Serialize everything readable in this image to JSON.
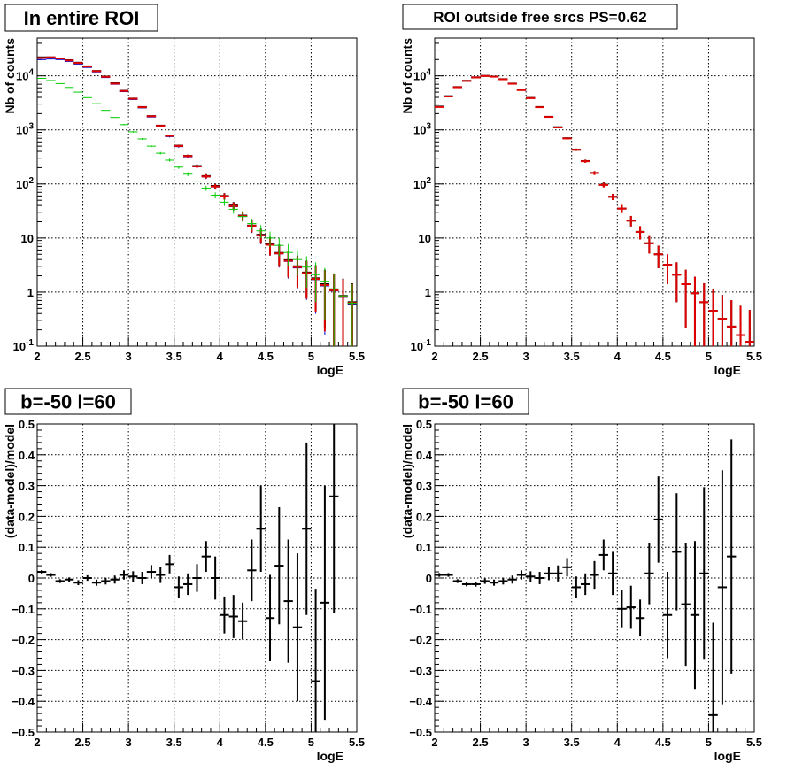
{
  "chart_data": [
    {
      "type": "scatter",
      "title": "In entire ROI",
      "xlabel": "logE",
      "ylabel": "Nb of counts",
      "xlim": [
        2,
        5.5
      ],
      "ylim": [
        0.1,
        50000
      ],
      "yscale": "log",
      "grid": true,
      "x_ticks": [
        "2",
        "2.5",
        "3",
        "3.5",
        "4",
        "4.5",
        "5",
        "5.5"
      ],
      "y_ticks": [
        "10^-1",
        "1",
        "10",
        "10^2",
        "10^3",
        "10^4"
      ],
      "series": [
        {
          "color": "#000000",
          "x": [
            2.05,
            2.15,
            2.25,
            2.35,
            2.45,
            2.55,
            2.65,
            2.75,
            2.85,
            2.95,
            3.05,
            3.15,
            3.25,
            3.35,
            3.45,
            3.55,
            3.65,
            3.75,
            3.85,
            3.95,
            4.05,
            4.15,
            4.25,
            4.35,
            4.45,
            4.55,
            4.65,
            4.75,
            4.85,
            4.95,
            5.05,
            5.15,
            5.25,
            5.35,
            5.45
          ],
          "y": [
            22000,
            22000,
            21000,
            19500,
            17500,
            15000,
            12300,
            9700,
            7300,
            5300,
            3800,
            2650,
            1800,
            1200,
            780,
            510,
            330,
            215,
            140,
            92,
            60,
            40,
            26,
            17,
            11.5,
            7.7,
            5.3,
            3.9,
            3.0,
            2.3,
            1.8,
            1.4,
            1.1,
            0.85,
            0.65
          ]
        },
        {
          "color": "#0000cc",
          "x": [
            2.05,
            2.15,
            2.25,
            2.35,
            2.45,
            2.55,
            2.65,
            2.75,
            2.85,
            2.95,
            3.05,
            3.15,
            3.25,
            3.35,
            3.45,
            3.55,
            3.65,
            3.75,
            3.85,
            3.95,
            4.05,
            4.15,
            4.25,
            4.35,
            4.45,
            4.55,
            4.65,
            4.75,
            4.85,
            4.95,
            5.05,
            5.15,
            5.25,
            5.35,
            5.45
          ],
          "y": [
            20000,
            20500,
            20000,
            18500,
            16500,
            14300,
            11800,
            9300,
            7000,
            5100,
            3650,
            2550,
            1730,
            1150,
            750,
            490,
            318,
            207,
            135,
            88,
            58,
            38,
            25,
            16.5,
            11,
            7.4,
            5.1,
            3.7,
            2.8,
            2.2,
            1.7,
            1.3,
            1.05,
            0.8,
            0.6
          ]
        },
        {
          "color": "#e00000",
          "x": [
            2.05,
            2.15,
            2.25,
            2.35,
            2.45,
            2.55,
            2.65,
            2.75,
            2.85,
            2.95,
            3.05,
            3.15,
            3.25,
            3.35,
            3.45,
            3.55,
            3.65,
            3.75,
            3.85,
            3.95,
            4.05,
            4.15,
            4.25,
            4.35,
            4.45,
            4.55,
            4.65,
            4.75,
            4.85,
            4.95,
            5.05,
            5.15,
            5.25,
            5.35,
            5.45
          ],
          "y": [
            21500,
            22000,
            21000,
            19300,
            17300,
            14900,
            12200,
            9600,
            7200,
            5250,
            3770,
            2630,
            1790,
            1190,
            775,
            505,
            328,
            212,
            138,
            90,
            59,
            39,
            25.5,
            16.8,
            11.2,
            7.5,
            5.2,
            3.8,
            2.9,
            2.25,
            1.75,
            1.35,
            1.08,
            0.82,
            0.63
          ]
        },
        {
          "color": "#00cc00",
          "x": [
            2.05,
            2.15,
            2.25,
            2.35,
            2.45,
            2.55,
            2.65,
            2.75,
            2.85,
            2.95,
            3.05,
            3.15,
            3.25,
            3.35,
            3.45,
            3.55,
            3.65,
            3.75,
            3.85,
            3.95,
            4.05,
            4.15,
            4.25,
            4.35,
            4.45,
            4.55,
            4.65,
            4.75,
            4.85,
            4.95,
            5.05,
            5.15,
            5.25,
            5.35,
            5.45
          ],
          "y": [
            9000,
            8200,
            7200,
            6100,
            5000,
            3950,
            3050,
            2300,
            1700,
            1250,
            920,
            680,
            500,
            370,
            275,
            205,
            152,
            113,
            84,
            62,
            46,
            34,
            25,
            18.5,
            13.6,
            10,
            7.3,
            5.4,
            4.0,
            2.9,
            2.1,
            1.55,
            1.15,
            0.85,
            0.62
          ]
        }
      ]
    },
    {
      "type": "scatter",
      "title": "ROI outside free srcs PS=0.62",
      "xlabel": "logE",
      "ylabel": "Nb of counts",
      "xlim": [
        2,
        5.5
      ],
      "ylim": [
        0.1,
        50000
      ],
      "yscale": "log",
      "grid": true,
      "x_ticks": [
        "2",
        "2.5",
        "3",
        "3.5",
        "4",
        "4.5",
        "5",
        "5.5"
      ],
      "y_ticks": [
        "10^-1",
        "1",
        "10",
        "10^2",
        "10^3",
        "10^4"
      ],
      "series": [
        {
          "color": "#000000",
          "x": [
            2.05,
            2.15,
            2.25,
            2.35,
            2.45,
            2.55,
            2.65,
            2.75,
            2.85,
            2.95,
            3.05,
            3.15,
            3.25,
            3.35,
            3.45,
            3.55,
            3.65,
            3.75,
            3.85,
            3.95,
            4.05,
            4.15,
            4.25,
            4.35,
            4.45,
            4.55,
            4.65,
            4.75,
            4.85,
            4.95,
            5.05,
            5.15,
            5.25,
            5.35,
            5.45
          ],
          "y": [
            2700,
            4200,
            6200,
            8100,
            9400,
            10000,
            9700,
            8700,
            7200,
            5500,
            3900,
            2650,
            1750,
            1120,
            700,
            430,
            265,
            160,
            97,
            58,
            35,
            21,
            13,
            8,
            5,
            3.2,
            2.1,
            1.4,
            0.95,
            0.65,
            0.45,
            0.32,
            0.23,
            0.16,
            0.12
          ]
        },
        {
          "color": "#e00000",
          "x": [
            2.05,
            2.15,
            2.25,
            2.35,
            2.45,
            2.55,
            2.65,
            2.75,
            2.85,
            2.95,
            3.05,
            3.15,
            3.25,
            3.35,
            3.45,
            3.55,
            3.65,
            3.75,
            3.85,
            3.95,
            4.05,
            4.15,
            4.25,
            4.35,
            4.45,
            4.55,
            4.65,
            4.75,
            4.85,
            4.95,
            5.05,
            5.15,
            5.25,
            5.35,
            5.45
          ],
          "y": [
            2650,
            4150,
            6150,
            8050,
            9350,
            9950,
            9650,
            8650,
            7150,
            5450,
            3870,
            2630,
            1740,
            1110,
            695,
            428,
            263,
            159,
            96,
            58,
            35,
            21,
            13,
            8,
            5,
            3.2,
            2.1,
            1.4,
            0.95,
            0.65,
            0.45,
            0.32,
            0.23,
            0.16,
            0.12
          ]
        }
      ]
    },
    {
      "type": "scatter",
      "title": "b=-50 l=60",
      "xlabel": "logE",
      "ylabel": "(data-model)/model",
      "xlim": [
        2,
        5.5
      ],
      "ylim": [
        -0.5,
        0.5
      ],
      "grid": true,
      "x_ticks": [
        "2",
        "2.5",
        "3",
        "3.5",
        "4",
        "4.5",
        "5",
        "5.5"
      ],
      "y_ticks": [
        "-0.5",
        "-0.4",
        "-0.3",
        "-0.2",
        "-0.1",
        "0",
        "0.1",
        "0.2",
        "0.3",
        "0.4",
        "0.5"
      ],
      "series": [
        {
          "color": "#000000",
          "x": [
            2.05,
            2.15,
            2.25,
            2.35,
            2.45,
            2.55,
            2.65,
            2.75,
            2.85,
            2.95,
            3.05,
            3.15,
            3.25,
            3.35,
            3.45,
            3.55,
            3.65,
            3.75,
            3.85,
            3.95,
            4.05,
            4.15,
            4.25,
            4.35,
            4.45,
            4.55,
            4.65,
            4.75,
            4.85,
            4.95,
            5.05,
            5.15,
            5.25
          ],
          "y": [
            0.02,
            0.01,
            -0.01,
            -0.005,
            -0.015,
            0,
            -0.015,
            -0.01,
            -0.005,
            0.01,
            0.005,
            0.0,
            0.02,
            0.01,
            0.045,
            -0.03,
            -0.02,
            0,
            0.07,
            0,
            -0.12,
            -0.125,
            -0.14,
            0.025,
            0.16,
            -0.13,
            0.04,
            -0.075,
            -0.16,
            0.16,
            -0.335,
            -0.08,
            0.265
          ],
          "err": [
            0.006,
            0.006,
            0.006,
            0.007,
            0.008,
            0.009,
            0.01,
            0.011,
            0.013,
            0.015,
            0.017,
            0.02,
            0.022,
            0.026,
            0.03,
            0.035,
            0.035,
            0.045,
            0.05,
            0.07,
            0.06,
            0.07,
            0.06,
            0.1,
            0.14,
            0.14,
            0.19,
            0.2,
            0.24,
            0.28,
            0.3,
            0.38,
            0.38
          ]
        }
      ]
    },
    {
      "type": "scatter",
      "title": "b=-50 l=60",
      "xlabel": "logE",
      "ylabel": "(data-model)/model",
      "xlim": [
        2,
        5.5
      ],
      "ylim": [
        -0.5,
        0.5
      ],
      "grid": true,
      "x_ticks": [
        "2",
        "2.5",
        "3",
        "3.5",
        "4",
        "4.5",
        "5",
        "5.5"
      ],
      "y_ticks": [
        "-0.5",
        "-0.4",
        "-0.3",
        "-0.2",
        "-0.1",
        "0",
        "0.1",
        "0.2",
        "0.3",
        "0.4",
        "0.5"
      ],
      "series": [
        {
          "color": "#000000",
          "x": [
            2.05,
            2.15,
            2.25,
            2.35,
            2.45,
            2.55,
            2.65,
            2.75,
            2.85,
            2.95,
            3.05,
            3.15,
            3.25,
            3.35,
            3.45,
            3.55,
            3.65,
            3.75,
            3.85,
            3.95,
            4.05,
            4.15,
            4.25,
            4.35,
            4.45,
            4.55,
            4.65,
            4.75,
            4.85,
            4.95,
            5.05,
            5.15,
            5.25
          ],
          "y": [
            0.01,
            0.01,
            -0.01,
            -0.02,
            -0.02,
            -0.01,
            -0.015,
            -0.01,
            -0.005,
            0.01,
            0.005,
            0.0,
            0.015,
            0.015,
            0.035,
            -0.03,
            -0.02,
            0.01,
            0.075,
            0.015,
            -0.1,
            -0.095,
            -0.13,
            0.015,
            0.19,
            -0.12,
            0.085,
            -0.085,
            -0.12,
            0.015,
            -0.445,
            -0.03,
            0.07
          ],
          "err": [
            0.006,
            0.006,
            0.006,
            0.007,
            0.008,
            0.009,
            0.01,
            0.011,
            0.013,
            0.015,
            0.017,
            0.02,
            0.022,
            0.026,
            0.03,
            0.035,
            0.035,
            0.045,
            0.05,
            0.07,
            0.06,
            0.07,
            0.06,
            0.1,
            0.14,
            0.14,
            0.19,
            0.2,
            0.24,
            0.28,
            0.3,
            0.38,
            0.38
          ]
        }
      ]
    }
  ]
}
